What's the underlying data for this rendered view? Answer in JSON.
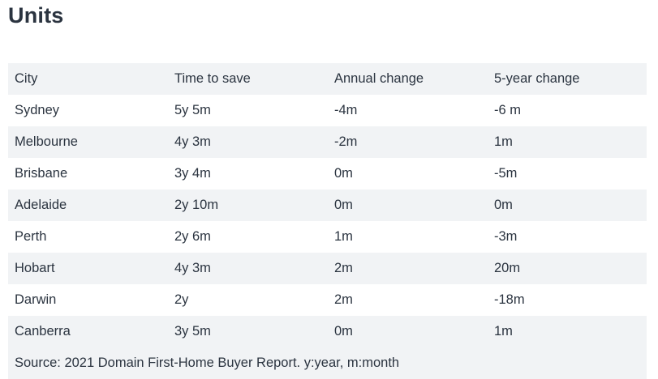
{
  "title": "Units",
  "table": {
    "headers": [
      "City",
      "Time to save",
      "Annual change",
      "5-year change"
    ],
    "rows": [
      [
        "Sydney",
        "5y 5m",
        "-4m",
        "-6 m"
      ],
      [
        "Melbourne",
        "4y 3m",
        "-2m",
        "1m"
      ],
      [
        "Brisbane",
        "3y 4m",
        "0m",
        "-5m"
      ],
      [
        "Adelaide",
        "2y 10m",
        "0m",
        "0m"
      ],
      [
        "Perth",
        "2y 6m",
        "1m",
        "-3m"
      ],
      [
        "Hobart",
        "4y 3m",
        "2m",
        "20m"
      ],
      [
        "Darwin",
        "2y",
        "2m",
        "-18m"
      ],
      [
        "Canberra",
        "3y 5m",
        "0m",
        "1m"
      ]
    ],
    "source": "Source: 2021 Domain First-Home Buyer Report. y:year, m:month"
  }
}
